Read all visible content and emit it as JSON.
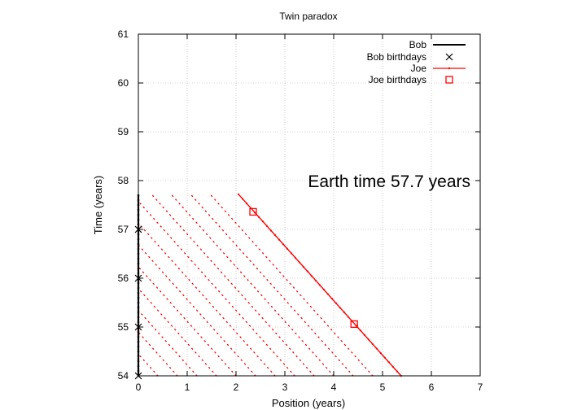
{
  "chart_data": {
    "type": "line",
    "title": "Twin paradox",
    "xlabel": "Position (years)",
    "ylabel": "Time (years)",
    "xlim": [
      0,
      7
    ],
    "ylim": [
      54,
      61
    ],
    "xticks": [
      "0",
      "1",
      "2",
      "3",
      "4",
      "5",
      "6",
      "7"
    ],
    "yticks": [
      "54",
      "55",
      "56",
      "57",
      "58",
      "59",
      "60",
      "61"
    ],
    "grid": true,
    "legend_position": "top-right",
    "annotation": "Earth time 57.7 years",
    "series": [
      {
        "name": "Bob",
        "color": "#000000",
        "x": [
          0,
          0
        ],
        "y": [
          54,
          57.7
        ]
      },
      {
        "name": "Bob birthdays",
        "color": "#000000",
        "marker": "x",
        "x": [
          0,
          0,
          0,
          0
        ],
        "y": [
          54,
          55,
          56,
          57
        ]
      },
      {
        "name": "Joe",
        "color": "#ff0000",
        "x": [
          5.38,
          2.05
        ],
        "y": [
          54,
          57.72
        ]
      },
      {
        "name": "Joe birthdays",
        "color": "#ff0000",
        "marker": "square",
        "x": [
          4.42,
          2.35
        ],
        "y": [
          55.06,
          57.36
        ]
      }
    ],
    "signal_lines": {
      "color": "#ff0000",
      "style": "dotted",
      "from_x": [
        4.8,
        4.4,
        4.0,
        3.6,
        3.2,
        2.8,
        2.4,
        2.0,
        1.6,
        1.2,
        0.8,
        0.4
      ],
      "y_start": 54,
      "y_end": 57.72
    }
  }
}
